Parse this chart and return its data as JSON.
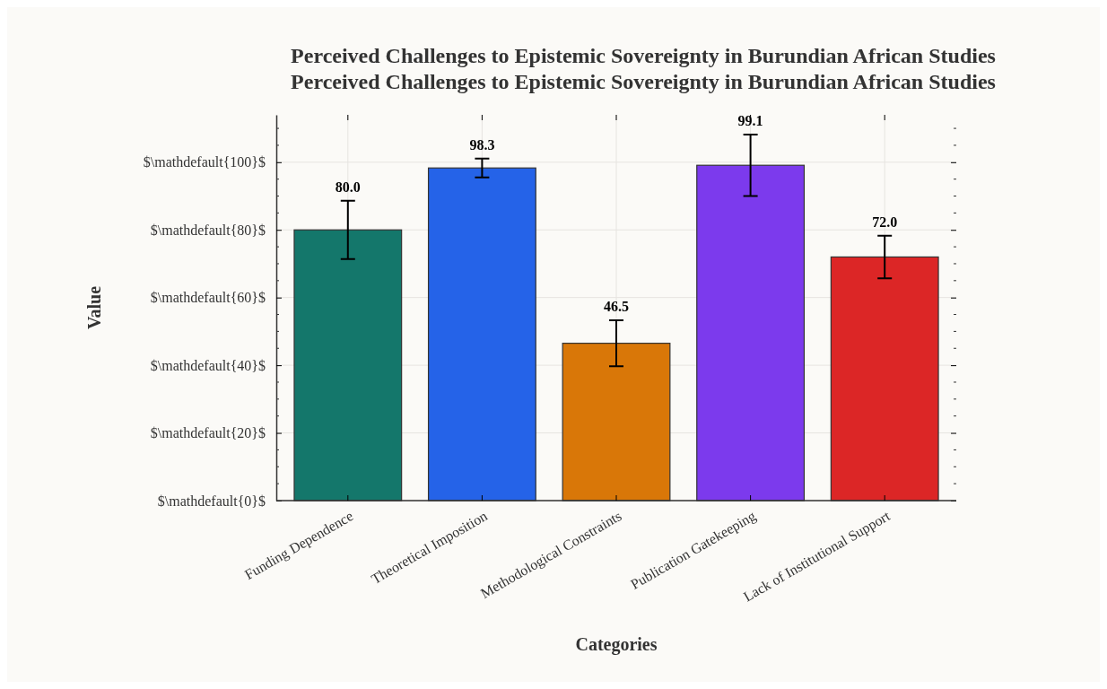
{
  "chart_data": {
    "type": "bar",
    "title": "Perceived Challenges to Epistemic Sovereignty in Burundian African Studies",
    "subtitle": "Perceived Challenges to Epistemic Sovereignty in Burundian African Studies",
    "xlabel": "Categories",
    "ylabel": "Value",
    "categories": [
      "Funding Dependence",
      "Theoretical Imposition",
      "Methodological Constraints",
      "Publication Gatekeeping",
      "Lack of Institutional Support"
    ],
    "values": [
      80.0,
      98.3,
      46.5,
      99.1,
      72.0
    ],
    "errors": [
      8.6,
      2.8,
      6.8,
      9.1,
      6.3
    ],
    "colors": [
      "#14776b",
      "#2563e8",
      "#d97708",
      "#7c3aed",
      "#dc2626"
    ],
    "ylim": [
      0,
      114
    ],
    "yticks": [
      {
        "value": 0,
        "label": "$\\mathdefault{0}$"
      },
      {
        "value": 20,
        "label": "$\\mathdefault{20}$"
      },
      {
        "value": 40,
        "label": "$\\mathdefault{40}$"
      },
      {
        "value": 60,
        "label": "$\\mathdefault{60}$"
      },
      {
        "value": 80,
        "label": "$\\mathdefault{80}$"
      },
      {
        "value": 100,
        "label": "$\\mathdefault{100}$"
      }
    ],
    "value_labels": [
      "80.0",
      "98.3",
      "46.5",
      "99.1",
      "72.0"
    ],
    "grid": true
  }
}
